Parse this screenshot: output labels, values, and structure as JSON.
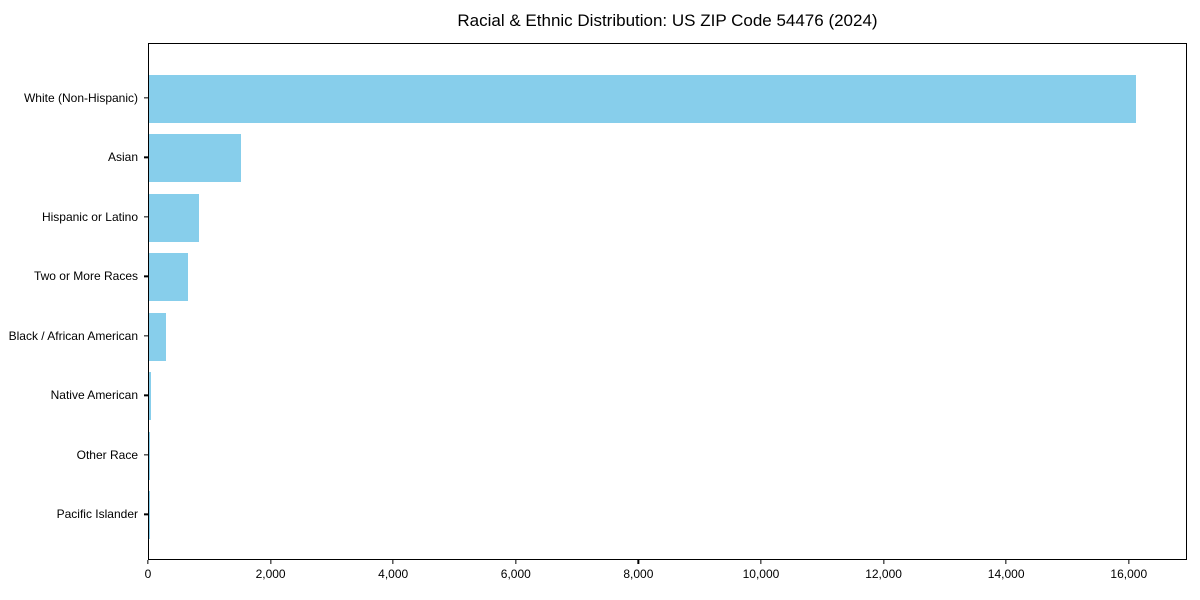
{
  "chart_data": {
    "type": "bar",
    "orientation": "horizontal",
    "title": "Racial & Ethnic Distribution: US ZIP Code 54476 (2024)",
    "categories": [
      "White (Non-Hispanic)",
      "Asian",
      "Hispanic or Latino",
      "Two or More Races",
      "Black / African American",
      "Native American",
      "Other Race",
      "Pacific Islander"
    ],
    "values": [
      16130,
      1500,
      820,
      640,
      270,
      25,
      10,
      5
    ],
    "x_tick_values": [
      0,
      2000,
      4000,
      6000,
      8000,
      10000,
      12000,
      14000,
      16000
    ],
    "x_tick_labels": [
      "0",
      "2,000",
      "4,000",
      "6,000",
      "8,000",
      "10,000",
      "12,000",
      "14,000",
      "16,000"
    ],
    "xlim": [
      0,
      16950
    ],
    "xlabel": "",
    "ylabel": "",
    "bar_color": "#87CEEB",
    "grid": false,
    "legend_position": "none"
  }
}
